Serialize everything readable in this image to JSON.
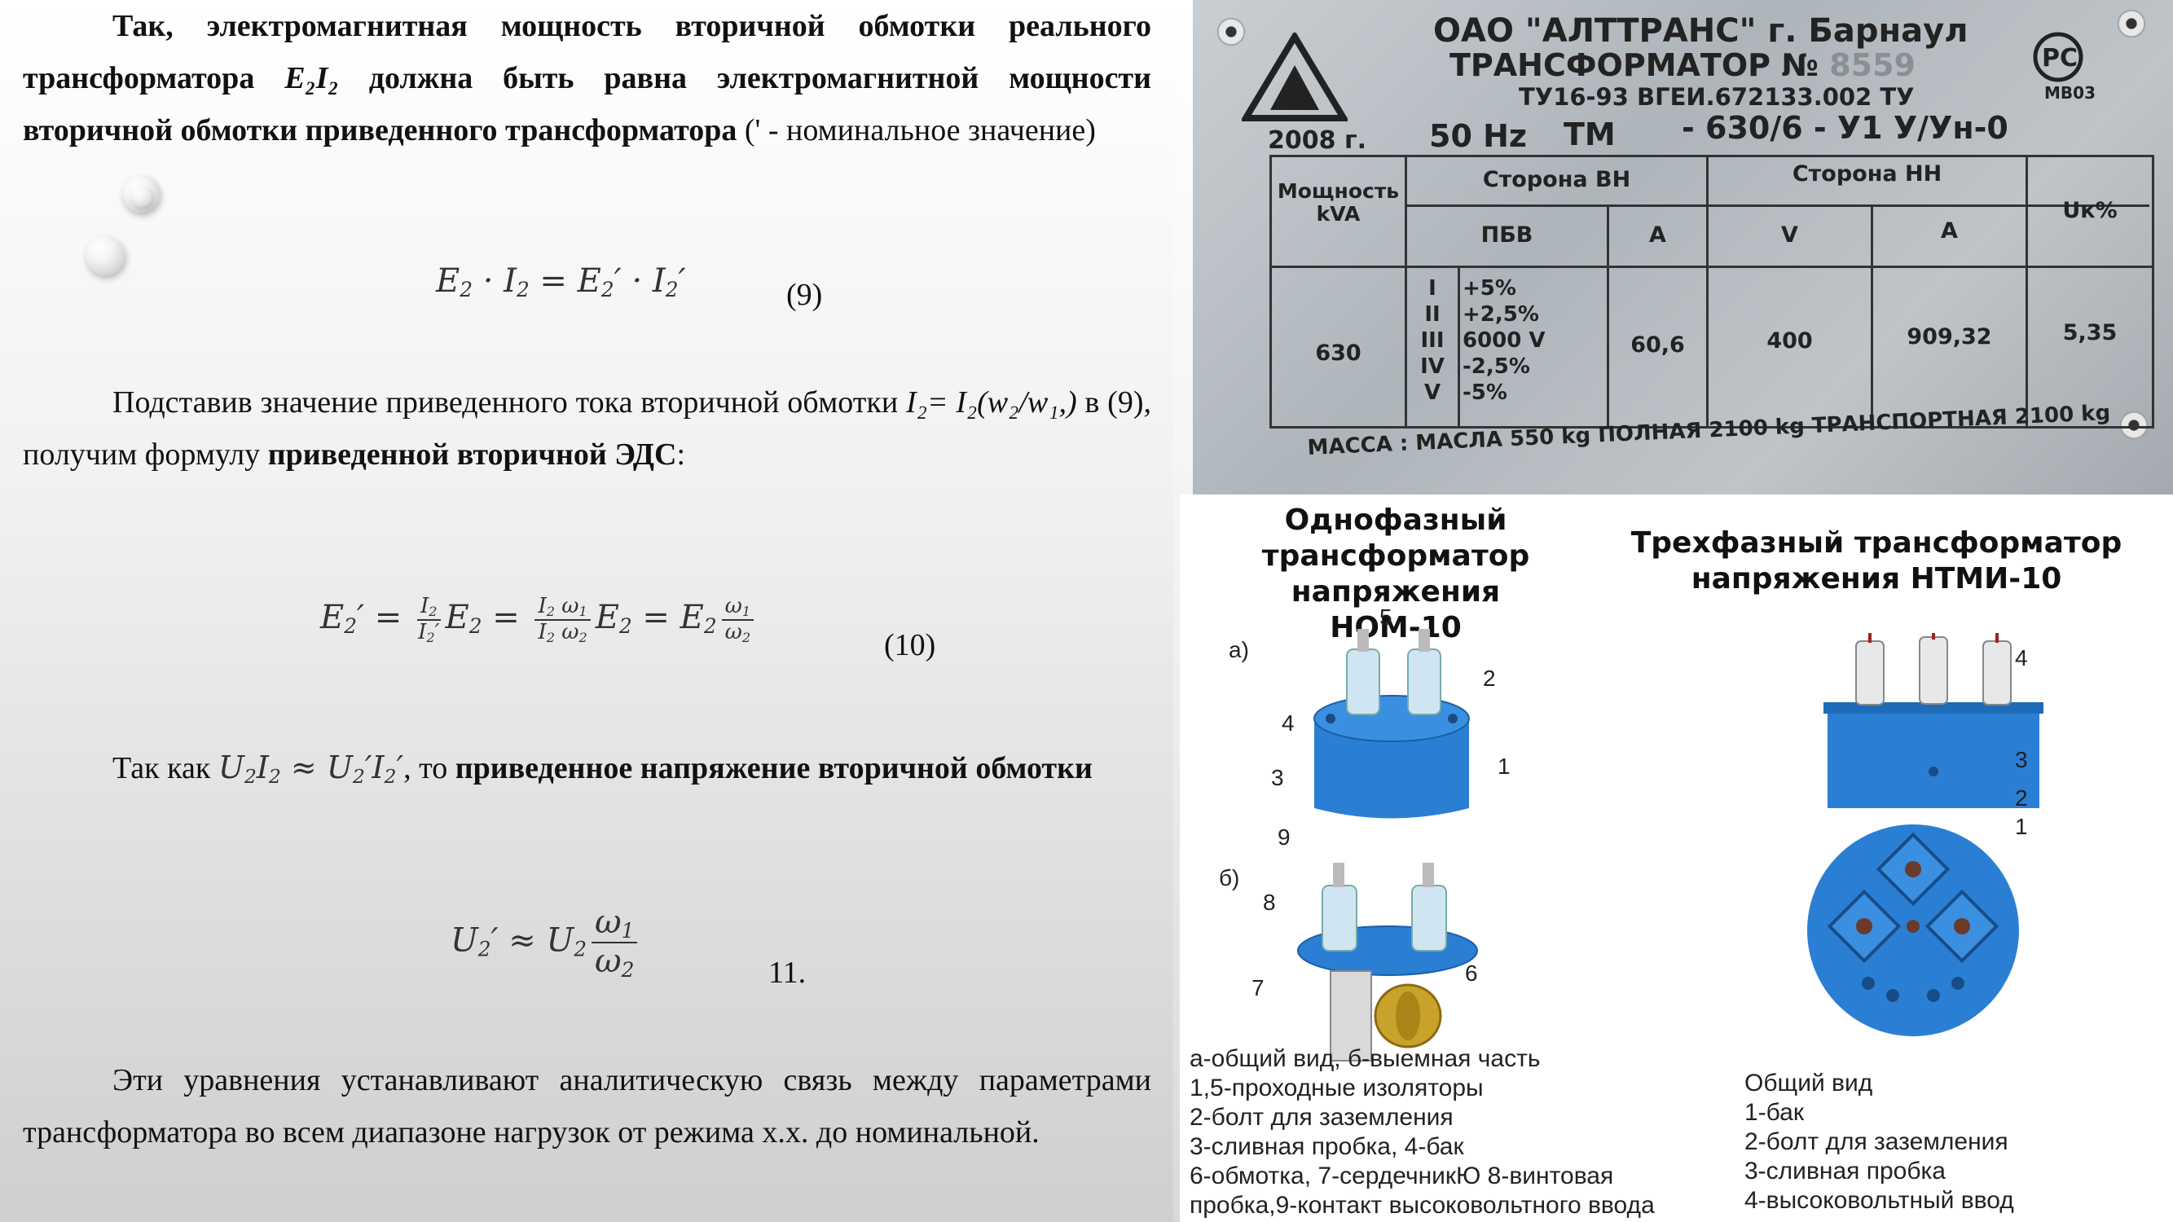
{
  "paragraph1": {
    "part1": "Так, электромагнитная мощность вторичной обмотки реального трансформатора ",
    "symbol": "E₂I₂",
    "part2": " должна быть равна электромагнитной мощности вторичной обмотки приведенного трансформатора",
    "part3": " (' - номинальное значение)"
  },
  "eq9": {
    "number": "(9)"
  },
  "paragraph2": {
    "part1": "Подставив значение приведенного тока вторичной обмотки ",
    "current": "I₂= I₂(w₂/w₁,)",
    "part2": " в (9), получим формулу ",
    "bold": "приведенной вторичной ЭДС",
    "part3": ":"
  },
  "eq10": {
    "number": "(10)"
  },
  "paragraph3": {
    "part1": "Так как",
    "part2": ", то ",
    "bold": "приведенное напряжение вторичной обмотки"
  },
  "eq11": {
    "number": "11."
  },
  "paragraph4": {
    "text": "Эти уравнения устанавливают аналитическую связь между параметрами трансформатора во всем диапазоне нагрузок от режима х.х. до номинальной."
  },
  "plate": {
    "company": "ОАО \"АЛТТРАНС\" г. Барнаул",
    "product": "ТРАНСФОРМАТОР №",
    "serial": "8559",
    "spec": "ТУ16-93 ВГЕИ.672133.002 ТУ",
    "cert": "МВ03",
    "year": "2008 г.",
    "freq": "50 Hz",
    "type": "ТМ",
    "model": "- 630/6 - У1 У/Ун-0",
    "headers": {
      "power": "Мощность kVA",
      "hv_side": "Сторона ВН",
      "lv_side": "Сторона НН",
      "uk": "Uк%",
      "pbv": "ПБВ",
      "amp_hv": "A",
      "volt_lv": "V",
      "amp_lv": "A"
    },
    "values": {
      "power": "630",
      "taps": [
        "I",
        "II",
        "III",
        "IV",
        "V"
      ],
      "tap_values": [
        "+5%",
        "+2,5%",
        "6000 V",
        "-2,5%",
        "-5%"
      ],
      "amp_hv": "60,6",
      "volt_lv": "400",
      "amp_lv": "909,32",
      "uk": "5,35"
    },
    "mass": "МАССА : МАСЛА 550 kg ПОЛНАЯ 2100 kg ТРАНСПОРТНАЯ 2100 kg"
  },
  "nom10": {
    "title": "Однофазный трансформатор напряжения НОМ-10",
    "label_a": "а)",
    "label_b": "б)",
    "numbers": [
      "1",
      "2",
      "3",
      "4",
      "5",
      "6",
      "7",
      "8",
      "9"
    ],
    "legend": [
      "а-общий вид, б-выемная часть",
      "1,5-проходные изоляторы",
      "2-болт для заземления",
      "3-сливная пробка, 4-бак",
      "6-обмотка, 7-сердечникЮ 8-винтовая",
      "пробка,9-контакт высоковольтного ввода"
    ]
  },
  "ntmi10": {
    "title": "Трехфазный трансформатор напряжения НТМИ-10",
    "numbers": [
      "4",
      "3",
      "2",
      "1"
    ],
    "legend": [
      "Общий вид",
      "1-бак",
      "2-болт для заземления",
      "3-сливная пробка",
      "4-высоковольтный ввод"
    ]
  },
  "colors": {
    "tank_blue": "#2a7fd4",
    "insulator": "#cfe6f2",
    "plate_metal": "#b5bbc0"
  }
}
